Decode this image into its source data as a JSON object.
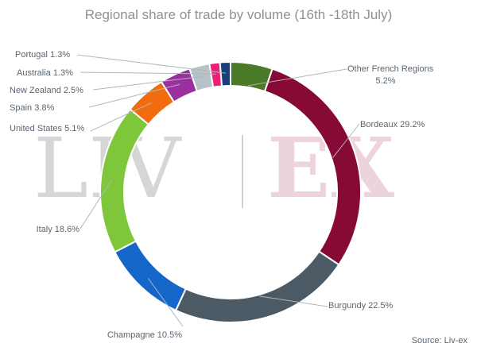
{
  "chart_data": {
    "type": "pie",
    "title": "Regional share of trade by volume (16th -18th July)",
    "source": "Source: Liv-ex",
    "watermark": {
      "left": "LIV",
      "right": "EX"
    },
    "unit": "%",
    "slices": [
      {
        "label": "Other French Regions",
        "value": 5.2,
        "color": "#4a7a26"
      },
      {
        "label": "Bordeaux",
        "value": 29.2,
        "color": "#870a36"
      },
      {
        "label": "Burgundy",
        "value": 22.5,
        "color": "#4c5a66"
      },
      {
        "label": "Champagne",
        "value": 10.5,
        "color": "#1467c8"
      },
      {
        "label": "Italy",
        "value": 18.6,
        "color": "#7ec63a"
      },
      {
        "label": "United States",
        "value": 5.1,
        "color": "#f26b0e"
      },
      {
        "label": "Spain",
        "value": 3.8,
        "color": "#9b2f9f"
      },
      {
        "label": "New Zealand",
        "value": 2.5,
        "color": "#b6c1c8"
      },
      {
        "label": "Australia",
        "value": 1.3,
        "color": "#ee1d77"
      },
      {
        "label": "Portugal",
        "value": 1.3,
        "color": "#183f78"
      }
    ],
    "labels": [
      {
        "lines": [
          "Other French Regions",
          "5.2%"
        ]
      },
      {
        "lines": [
          "Bordeaux 29.2%"
        ]
      },
      {
        "lines": [
          "Burgundy 22.5%"
        ]
      },
      {
        "lines": [
          "Champagne  10.5%"
        ]
      },
      {
        "lines": [
          "Italy 18.6%"
        ]
      },
      {
        "lines": [
          "United States 5.1%"
        ]
      },
      {
        "lines": [
          "Spain 3.8%"
        ]
      },
      {
        "lines": [
          "New Zealand 2.5%"
        ]
      },
      {
        "lines": [
          "Australia 1.3%"
        ]
      },
      {
        "lines": [
          "Portugal 1.3%"
        ]
      }
    ]
  }
}
